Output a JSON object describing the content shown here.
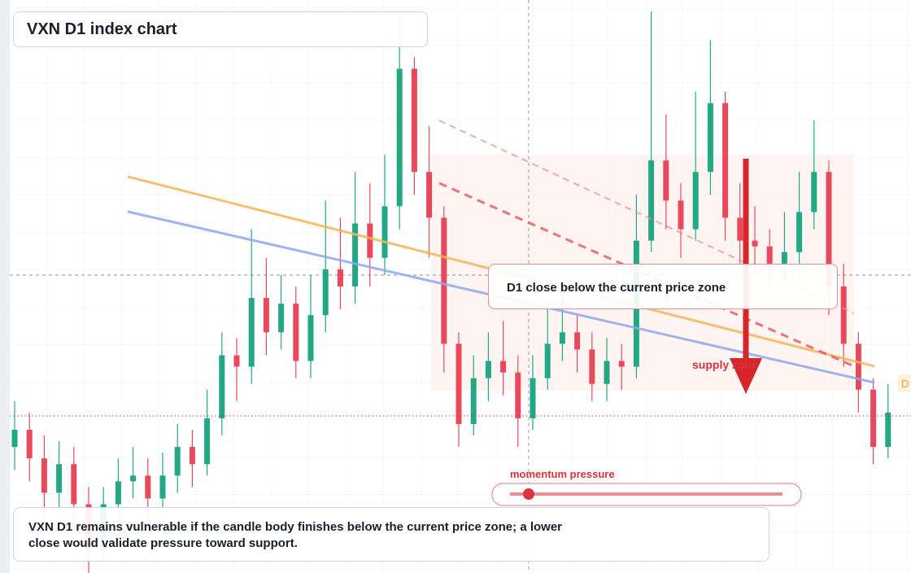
{
  "chart_data": {
    "type": "candlestick",
    "title": "VXN D1 index chart",
    "annotation": "D1 close below the current price zone",
    "zone_label": "supply zone",
    "slider_label": "momentum pressure",
    "note": "VXN D1 remains vulnerable if the candle body finishes below the current price zone; a lower close would validate pressure toward support.",
    "edge_label": "D",
    "ylim": [
      0,
      100
    ],
    "up_color": "#22a884",
    "down_color": "#e8495d",
    "open": [
      22,
      25,
      20,
      14,
      19,
      12,
      4,
      12,
      16,
      17,
      13,
      17,
      22,
      19,
      27,
      38,
      36,
      48,
      42,
      47,
      37,
      45,
      53,
      50,
      61,
      55,
      64,
      88,
      70,
      62,
      40,
      26,
      34,
      37,
      35,
      27,
      34,
      40,
      42,
      39,
      33,
      37,
      36,
      58,
      72,
      65,
      60,
      70,
      82,
      62,
      58,
      57,
      54,
      56,
      63,
      70,
      50,
      40,
      32,
      22
    ],
    "high": [
      30,
      28,
      24,
      23,
      22,
      15,
      15,
      20,
      22,
      20,
      21,
      26,
      25,
      32,
      42,
      41,
      60,
      55,
      52,
      50,
      52,
      65,
      62,
      70,
      68,
      73,
      97,
      90,
      78,
      64,
      42,
      38,
      42,
      44,
      38,
      38,
      46,
      48,
      45,
      42,
      41,
      40,
      66,
      98,
      80,
      68,
      84,
      93,
      84,
      68,
      64,
      60,
      63,
      70,
      79,
      72,
      54,
      42,
      34,
      33
    ],
    "low": [
      18,
      16,
      10,
      11,
      8,
      0,
      2,
      9,
      13,
      9,
      10,
      14,
      15,
      17,
      24,
      30,
      33,
      38,
      39,
      34,
      34,
      42,
      46,
      47,
      50,
      52,
      60,
      66,
      55,
      35,
      22,
      24,
      30,
      31,
      22,
      25,
      32,
      37,
      35,
      30,
      30,
      32,
      34,
      56,
      60,
      55,
      58,
      66,
      58,
      54,
      52,
      50,
      51,
      54,
      60,
      45,
      36,
      28,
      19,
      20
    ],
    "close": [
      25,
      20,
      14,
      19,
      12,
      4,
      12,
      16,
      17,
      13,
      17,
      22,
      19,
      27,
      38,
      36,
      48,
      42,
      47,
      37,
      45,
      53,
      50,
      61,
      55,
      64,
      88,
      70,
      62,
      40,
      26,
      34,
      37,
      35,
      27,
      34,
      40,
      42,
      39,
      33,
      37,
      36,
      58,
      72,
      65,
      60,
      70,
      82,
      62,
      58,
      57,
      54,
      56,
      63,
      70,
      50,
      40,
      32,
      22,
      28
    ]
  }
}
